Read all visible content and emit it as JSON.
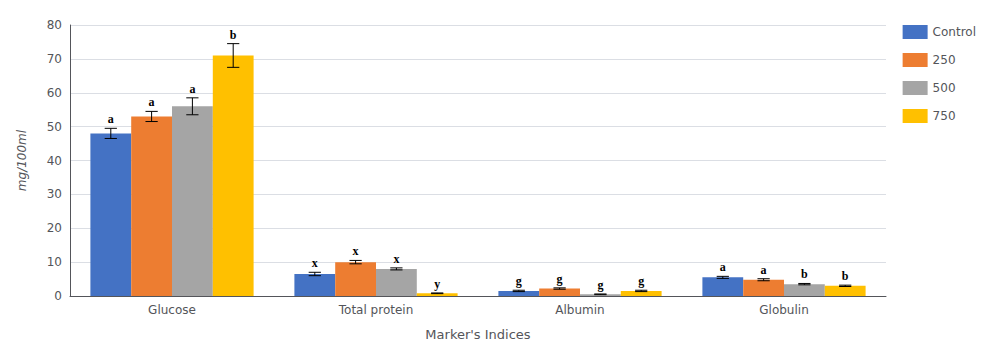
{
  "chart_data": {
    "type": "bar",
    "xlabel": "Marker's Indices",
    "ylabel": "mg/100ml",
    "categories": [
      "Glucose",
      "Total protein",
      "Albumin",
      "Globulin"
    ],
    "series": [
      {
        "name": "Control",
        "color": "#4472C4",
        "values": [
          48.0,
          6.5,
          1.5,
          5.5
        ],
        "errors": [
          1.5,
          0.5,
          0.2,
          0.3
        ],
        "annotations": [
          "a",
          "x",
          "g",
          "a"
        ]
      },
      {
        "name": "250",
        "color": "#ED7D31",
        "values": [
          53.0,
          10.0,
          2.2,
          4.8
        ],
        "errors": [
          1.5,
          0.5,
          0.2,
          0.3
        ],
        "annotations": [
          "a",
          "x",
          "g",
          "a"
        ]
      },
      {
        "name": "500",
        "color": "#A5A5A5",
        "values": [
          56.0,
          8.0,
          0.5,
          3.5
        ],
        "errors": [
          2.5,
          0.3,
          0.1,
          0.2
        ],
        "annotations": [
          "a",
          "x",
          "g",
          "b"
        ]
      },
      {
        "name": "750",
        "color": "#FFC000",
        "values": [
          71.0,
          0.8,
          1.5,
          3.0
        ],
        "errors": [
          3.5,
          0.1,
          0.2,
          0.2
        ],
        "annotations": [
          "b",
          "y",
          "g",
          "b"
        ]
      }
    ],
    "ylim": [
      0,
      80
    ],
    "yticks": [
      0,
      10,
      20,
      30,
      40,
      50,
      60,
      70,
      80
    ],
    "grid": true,
    "legend": "right"
  }
}
